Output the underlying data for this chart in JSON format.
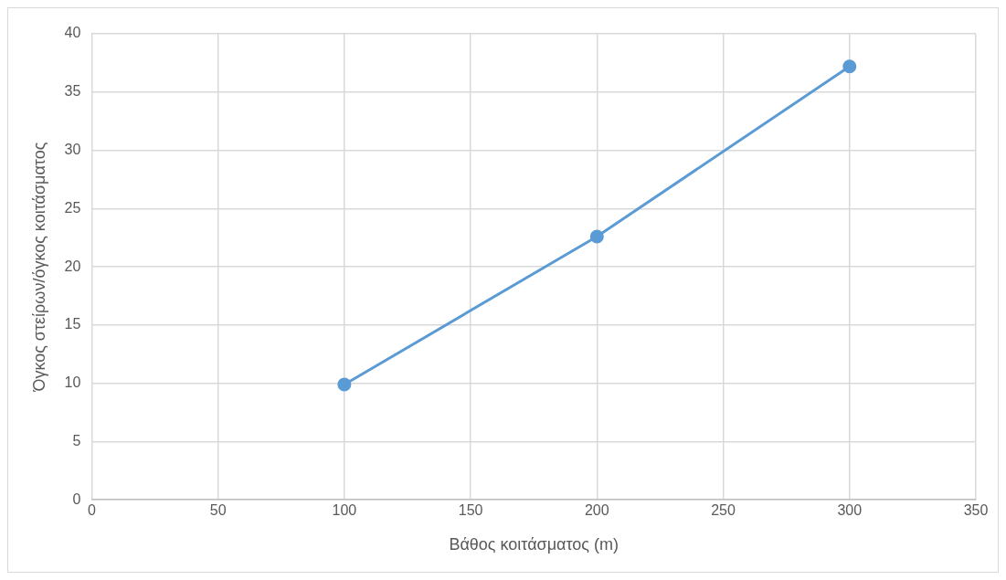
{
  "chart_data": {
    "type": "line",
    "xlabel": "Βάθος κοιτάσματος (m)",
    "ylabel": "Όγκος στείρων/όγκος κοιτάσματος",
    "x": [
      100,
      200,
      300
    ],
    "values": [
      9.9,
      22.6,
      37.2
    ],
    "color": "#5b9bd5",
    "marker": "circle",
    "xlim": [
      0,
      350
    ],
    "ylim": [
      0,
      40
    ],
    "xticks": [
      0,
      50,
      100,
      150,
      200,
      250,
      300,
      350
    ],
    "yticks": [
      0,
      5,
      10,
      15,
      20,
      25,
      30,
      35,
      40
    ],
    "grid": true,
    "legend": false
  }
}
